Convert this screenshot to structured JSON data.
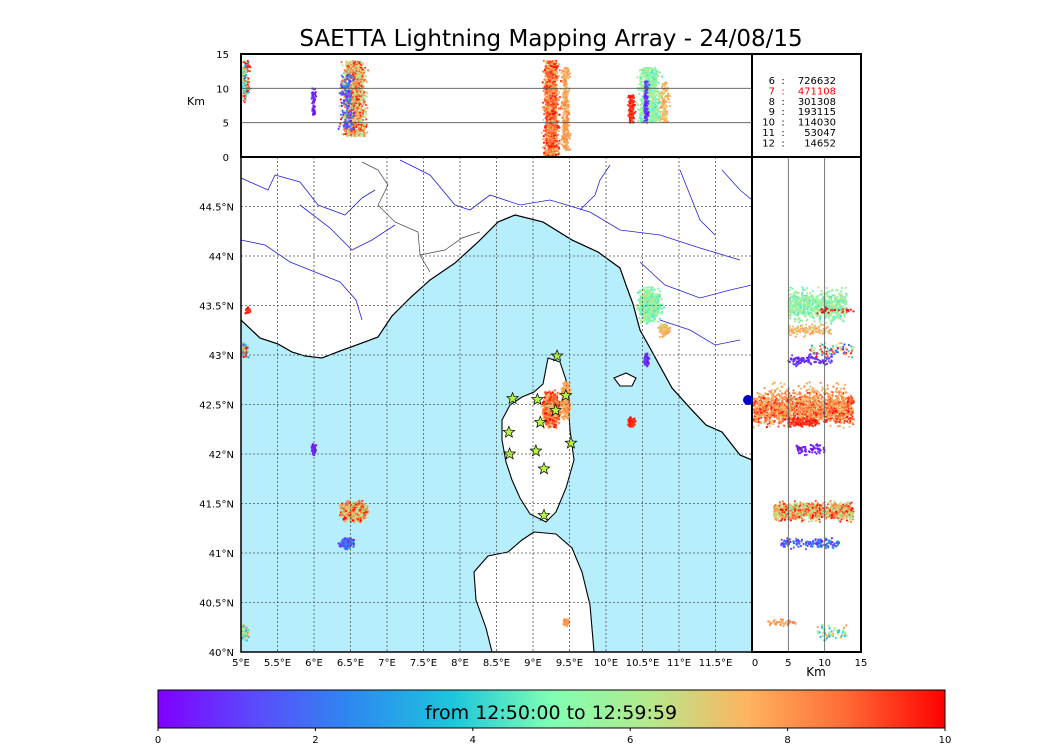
{
  "title": "SAETTA Lightning Mapping Array - 24/08/15",
  "colors": {
    "sea": "#b7eefb",
    "land": "#ffffff",
    "coast": "#000000",
    "rivers": "#2222dd",
    "borders": "#444444",
    "star_fill": "#b6f542",
    "station_marker": "#0000cc",
    "highlight_count": "#ff0000"
  },
  "altitude_axis": {
    "label": "Km",
    "ticks": [
      "0",
      "5",
      "10",
      "15"
    ],
    "range": [
      0,
      15
    ]
  },
  "counts_legend": [
    {
      "code": "6",
      "sep": ":",
      "value": "726632",
      "highlight": false
    },
    {
      "code": "7",
      "sep": ":",
      "value": "471108",
      "highlight": true
    },
    {
      "code": "8",
      "sep": ":",
      "value": "301308",
      "highlight": false
    },
    {
      "code": "9",
      "sep": ":",
      "value": "193115",
      "highlight": false
    },
    {
      "code": "10",
      "sep": ":",
      "value": "114030",
      "highlight": false
    },
    {
      "code": "11",
      "sep": ":",
      "value": "53047",
      "highlight": false
    },
    {
      "code": "12",
      "sep": ":",
      "value": "14652",
      "highlight": false
    }
  ],
  "colorbar": {
    "label": "from 12:50:00 to 12:59:59",
    "ticks": [
      "0",
      "2",
      "4",
      "6",
      "8",
      "10"
    ],
    "range": [
      0,
      10
    ],
    "colormap": "rainbow"
  },
  "chart_data": {
    "type": "scatter",
    "title": "SAETTA Lightning Mapping Array - 24/08/15",
    "x_ticks": [
      "5°E",
      "5.5°E",
      "6°E",
      "6.5°E",
      "7°E",
      "7.5°E",
      "8°E",
      "8.5°E",
      "9°E",
      "9.5°E",
      "10°E",
      "10.5°E",
      "11°E",
      "11.5°E"
    ],
    "y_ticks": [
      "40°N",
      "40.5°N",
      "41°N",
      "41.5°N",
      "42°N",
      "42.5°N",
      "43°N",
      "43.5°N",
      "44°N",
      "44.5°N"
    ],
    "lon_range": [
      5,
      12
    ],
    "lat_range": [
      40,
      45
    ],
    "alt_range_km": [
      0,
      15
    ],
    "grid": true,
    "color_scale": "minutes after 12:50:00 (0-10)",
    "stations": [
      {
        "lon": 9.33,
        "lat": 42.99
      },
      {
        "lon": 8.72,
        "lat": 42.56
      },
      {
        "lon": 9.06,
        "lat": 42.55
      },
      {
        "lon": 9.45,
        "lat": 42.59
      },
      {
        "lon": 9.31,
        "lat": 42.44
      },
      {
        "lon": 9.1,
        "lat": 42.32
      },
      {
        "lon": 8.67,
        "lat": 42.22
      },
      {
        "lon": 9.52,
        "lat": 42.11
      },
      {
        "lon": 9.04,
        "lat": 42.03
      },
      {
        "lon": 8.68,
        "lat": 42.0
      },
      {
        "lon": 9.15,
        "lat": 41.85
      },
      {
        "lon": 9.15,
        "lat": 41.38
      }
    ],
    "storm_cells": [
      {
        "lon": 9.25,
        "lat": 42.45,
        "lon_spread": 0.14,
        "lat_spread": 0.22,
        "alt_low": 0,
        "alt_high": 14,
        "t_min": 7,
        "t_max": 10,
        "sources": 1400
      },
      {
        "lon": 9.45,
        "lat": 42.55,
        "lon_spread": 0.08,
        "lat_spread": 0.25,
        "alt_low": 1,
        "alt_high": 13,
        "t_min": 7,
        "t_max": 8.5,
        "sources": 300
      },
      {
        "lon": 10.6,
        "lat": 43.5,
        "lon_spread": 0.22,
        "lat_spread": 0.22,
        "alt_low": 5,
        "alt_high": 13,
        "t_min": 4.3,
        "t_max": 6.5,
        "sources": 700
      },
      {
        "lon": 10.8,
        "lat": 43.25,
        "lon_spread": 0.1,
        "lat_spread": 0.08,
        "alt_low": 5,
        "alt_high": 11,
        "t_min": 6.5,
        "t_max": 8,
        "sources": 120
      },
      {
        "lon": 10.55,
        "lat": 42.95,
        "lon_spread": 0.05,
        "lat_spread": 0.08,
        "alt_low": 5,
        "alt_high": 11,
        "t_min": 0,
        "t_max": 1.5,
        "sources": 100
      },
      {
        "lon": 10.35,
        "lat": 42.32,
        "lon_spread": 0.06,
        "lat_spread": 0.06,
        "alt_low": 5,
        "alt_high": 9,
        "t_min": 9,
        "t_max": 10,
        "sources": 120
      },
      {
        "lon": 6.55,
        "lat": 41.42,
        "lon_spread": 0.22,
        "lat_spread": 0.12,
        "alt_low": 3,
        "alt_high": 14,
        "t_min": 5.5,
        "t_max": 10,
        "sources": 1200
      },
      {
        "lon": 6.45,
        "lat": 41.1,
        "lon_spread": 0.12,
        "lat_spread": 0.07,
        "alt_low": 4,
        "alt_high": 12,
        "t_min": 0.5,
        "t_max": 3,
        "sources": 150
      },
      {
        "lon": 5.05,
        "lat": 43.05,
        "lon_spread": 0.06,
        "lat_spread": 0.1,
        "alt_low": 8,
        "alt_high": 14,
        "t_min": 1,
        "t_max": 10,
        "sources": 80
      },
      {
        "lon": 5.1,
        "lat": 43.45,
        "lon_spread": 0.05,
        "lat_spread": 0.05,
        "alt_low": 9,
        "alt_high": 14,
        "t_min": 9,
        "t_max": 10,
        "sources": 30
      },
      {
        "lon": 5.05,
        "lat": 40.2,
        "lon_spread": 0.08,
        "lat_spread": 0.1,
        "alt_low": 9,
        "alt_high": 13,
        "t_min": 3,
        "t_max": 8,
        "sources": 60
      },
      {
        "lon": 6.0,
        "lat": 42.05,
        "lon_spread": 0.05,
        "lat_spread": 0.07,
        "alt_low": 6,
        "alt_high": 10,
        "t_min": 0,
        "t_max": 1,
        "sources": 60
      },
      {
        "lon": 9.45,
        "lat": 40.3,
        "lon_spread": 0.05,
        "lat_spread": 0.05,
        "alt_low": 2,
        "alt_high": 6,
        "t_min": 7.5,
        "t_max": 8.5,
        "sources": 40
      }
    ]
  }
}
